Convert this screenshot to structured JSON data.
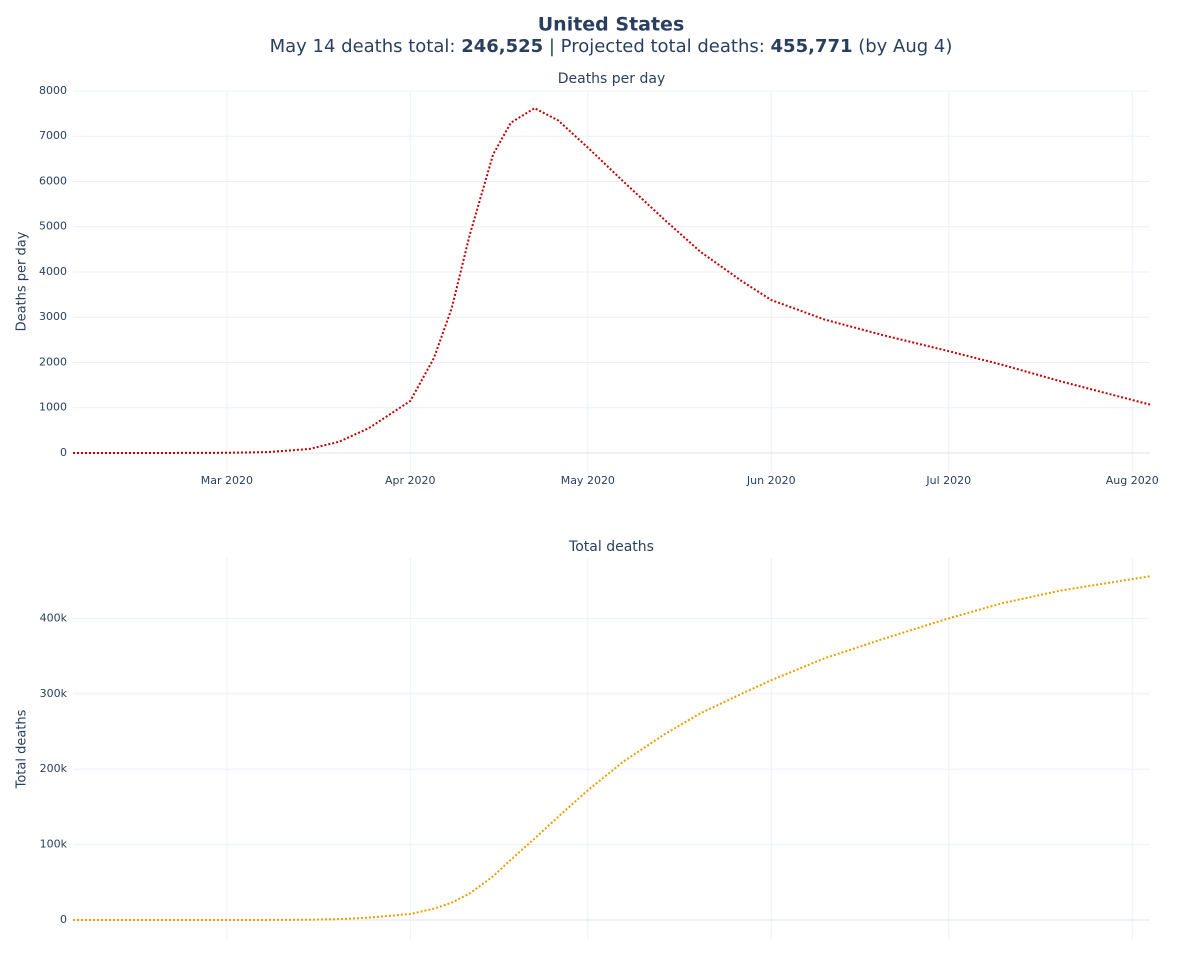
{
  "title": "United States",
  "subtitle_parts": [
    {
      "text": "May 14 deaths total: ",
      "bold": false
    },
    {
      "text": "246,525",
      "bold": true
    },
    {
      "text": " | Projected total deaths: ",
      "bold": false
    },
    {
      "text": "455,771",
      "bold": true
    },
    {
      "text": " (by Aug 4)",
      "bold": false
    }
  ],
  "chart_data": [
    {
      "type": "line",
      "title": "Deaths per day",
      "y_title": "Deaths per day",
      "x": [
        "2020-02-04",
        "2020-02-15",
        "2020-02-25",
        "2020-03-01",
        "2020-03-08",
        "2020-03-15",
        "2020-03-20",
        "2020-03-25",
        "2020-04-01",
        "2020-04-05",
        "2020-04-08",
        "2020-04-11",
        "2020-04-15",
        "2020-04-18",
        "2020-04-22",
        "2020-04-26",
        "2020-05-01",
        "2020-05-07",
        "2020-05-14",
        "2020-05-20",
        "2020-05-27",
        "2020-06-01",
        "2020-06-10",
        "2020-06-20",
        "2020-07-01",
        "2020-07-10",
        "2020-07-20",
        "2020-08-04"
      ],
      "series": [
        {
          "name": "Deaths per day",
          "color": "#c00000",
          "values": [
            0,
            0,
            2,
            5,
            20,
            90,
            250,
            550,
            1150,
            2100,
            3200,
            4800,
            6600,
            7300,
            7620,
            7350,
            6750,
            6000,
            5150,
            4450,
            3800,
            3380,
            2950,
            2600,
            2250,
            1950,
            1580,
            1070
          ]
        }
      ],
      "xlim": [
        "2020-02-04",
        "2020-08-04"
      ],
      "xticks": [
        {
          "value": "2020-03-01",
          "label": "Mar 2020"
        },
        {
          "value": "2020-04-01",
          "label": "Apr 2020"
        },
        {
          "value": "2020-05-01",
          "label": "May 2020"
        },
        {
          "value": "2020-06-01",
          "label": "Jun 2020"
        },
        {
          "value": "2020-07-01",
          "label": "Jul 2020"
        },
        {
          "value": "2020-08-01",
          "label": "Aug 2020"
        }
      ],
      "ylim": [
        -420,
        8000
      ],
      "yticks": [
        0,
        1000,
        2000,
        3000,
        4000,
        5000,
        6000,
        7000,
        8000
      ],
      "grid": true,
      "line_style": "dotted"
    },
    {
      "type": "line",
      "title": "Total deaths",
      "y_title": "Total deaths",
      "x": [
        "2020-02-04",
        "2020-02-15",
        "2020-02-25",
        "2020-03-01",
        "2020-03-08",
        "2020-03-15",
        "2020-03-20",
        "2020-03-25",
        "2020-04-01",
        "2020-04-05",
        "2020-04-08",
        "2020-04-11",
        "2020-04-15",
        "2020-04-18",
        "2020-04-22",
        "2020-04-26",
        "2020-05-01",
        "2020-05-07",
        "2020-05-14",
        "2020-05-20",
        "2020-05-27",
        "2020-06-01",
        "2020-06-10",
        "2020-06-20",
        "2020-07-01",
        "2020-07-10",
        "2020-07-20",
        "2020-08-04"
      ],
      "series": [
        {
          "name": "Total deaths",
          "color": "#e8a000",
          "values": [
            0,
            0,
            10,
            30,
            100,
            400,
            1200,
            3200,
            8000,
            15000,
            23000,
            35000,
            58000,
            80000,
            108000,
            137000,
            172000,
            210000,
            246525,
            274000,
            300000,
            318000,
            347000,
            373000,
            400000,
            420000,
            437000,
            455771
          ]
        }
      ],
      "xlim": [
        "2020-02-04",
        "2020-08-04"
      ],
      "xticks": [
        "2020-03-01",
        "2020-04-01",
        "2020-05-01",
        "2020-06-01",
        "2020-07-01",
        "2020-08-01"
      ],
      "ylim": [
        -26500,
        480000
      ],
      "yticks": [
        0,
        {
          "value": 100000,
          "label": "100k"
        },
        {
          "value": 200000,
          "label": "200k"
        },
        {
          "value": 300000,
          "label": "300k"
        },
        {
          "value": 400000,
          "label": "400k"
        }
      ],
      "grid": true,
      "line_style": "dotted"
    }
  ]
}
